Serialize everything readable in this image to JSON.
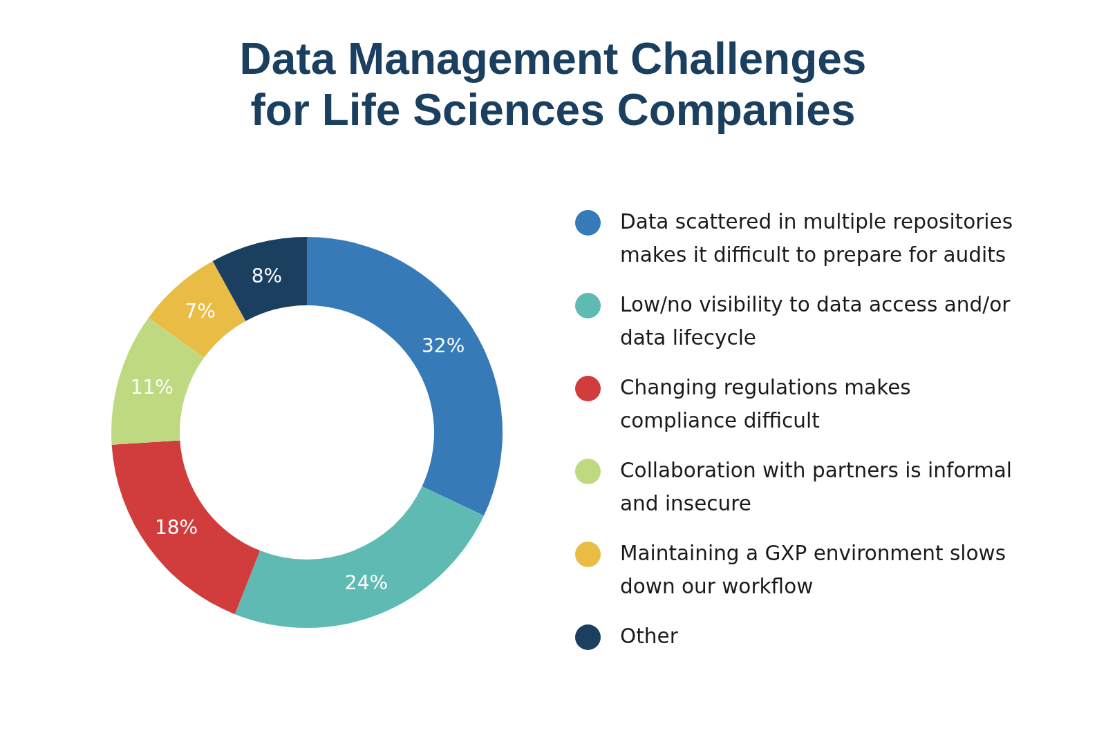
{
  "chart_data": {
    "type": "donut",
    "title": "Data Management Challenges for Life Sciences Companies",
    "categories": [
      "Data scattered in multiple repositories makes it difficult to prepare for audits",
      "Low/no visibility to data access and/or data lifecycle",
      "Changing regulations makes compliance difficult",
      "Collaboration with partners is informal and insecure",
      "Maintaining a GXP environment slows down our workflow",
      "Other"
    ],
    "values": [
      32,
      24,
      18,
      11,
      7,
      8
    ],
    "colors": [
      "#367bb8",
      "#5fbab4",
      "#d13c3d",
      "#bed97f",
      "#e9bc45",
      "#1a3f5f"
    ],
    "value_labels": [
      "32%",
      "24%",
      "18%",
      "11%",
      "7%",
      "8%"
    ],
    "legend": "right"
  }
}
